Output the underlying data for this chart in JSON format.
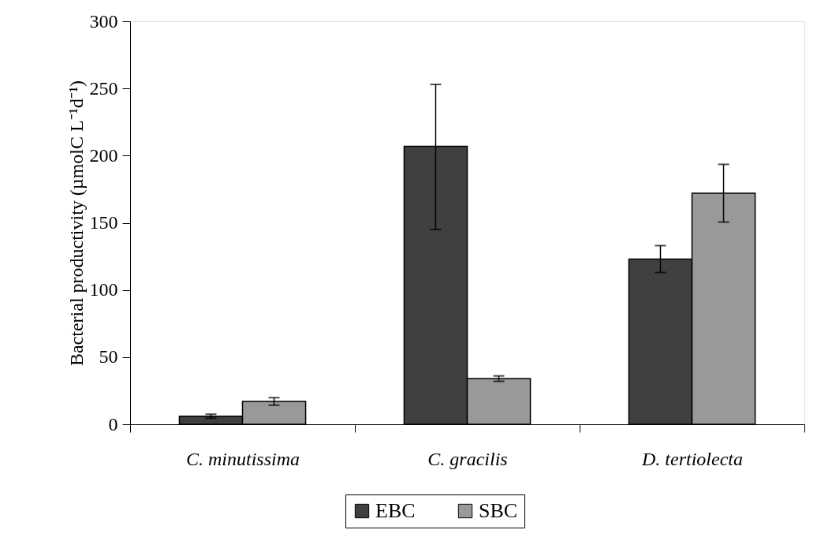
{
  "chart_data": {
    "type": "bar",
    "ylabel": "Bacterial productivity (µmolC L⁻¹d⁻¹)",
    "categories": [
      "C. minutissima",
      "C. gracilis",
      "D. tertiolecta"
    ],
    "series": [
      {
        "name": "EBC",
        "color": "#404040",
        "values": [
          6,
          207,
          123
        ],
        "errors": [
          1.5,
          [
            145,
            253
          ],
          10
        ]
      },
      {
        "name": "SBC",
        "color": "#999999",
        "values": [
          17,
          34,
          172
        ],
        "errors": [
          2.8,
          2,
          21.5
        ]
      }
    ],
    "ylim": [
      0,
      300
    ],
    "yticks": [
      0,
      50,
      100,
      150,
      200,
      250,
      300
    ],
    "grid": false,
    "legend": "bottom"
  }
}
